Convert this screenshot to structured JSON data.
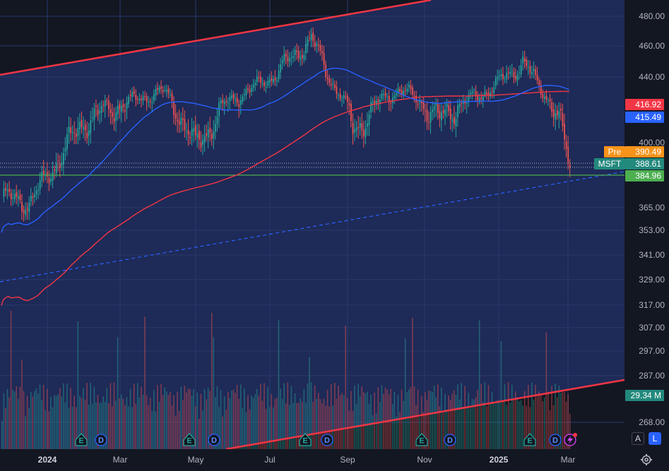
{
  "symbol": "MSFT",
  "colors": {
    "background": "#131722",
    "plot_bg": "#1e2a57",
    "up": "#26a69a",
    "down": "#ef5350",
    "ma50": "#2962ff",
    "ma200": "#f23645",
    "trendline": "#f23645",
    "support": "#4caf50"
  },
  "price_axis": {
    "ticks": [
      "480.00",
      "460.00",
      "440.00",
      "416.92",
      "415.49",
      "400.00",
      "390.49",
      "388.61",
      "384.96",
      "365.00",
      "353.00",
      "341.00",
      "329.00",
      "317.00",
      "307.00",
      "297.00",
      "287.00",
      "268.00"
    ]
  },
  "badges": {
    "ma200_value": "416.92",
    "ma50_value": "415.49",
    "pre_label": "Pre",
    "pre_value": "390.49",
    "symbol_label": "MSFT",
    "last_value": "388.61",
    "support_value": "384.96",
    "volume_value": "29.34 M"
  },
  "time_axis": [
    "2024",
    "Mar",
    "May",
    "Jul",
    "Sep",
    "Nov",
    "2025",
    "Mar"
  ],
  "events": {
    "earnings_letter": "E",
    "dividend_letter": "D"
  },
  "buttons": {
    "auto": "A",
    "log": "L"
  },
  "chart_data": {
    "type": "candlestick",
    "title": "",
    "series": [
      {
        "name": "",
        "type": "candlestick",
        "close": [
          {
            "x": "2023-12",
            "y": 372
          },
          {
            "x": "2024-01",
            "y": 397
          },
          {
            "x": "2024-02",
            "y": 410
          },
          {
            "x": "2024-03",
            "y": 420
          },
          {
            "x": "2024-04",
            "y": 396
          },
          {
            "x": "2024-05",
            "y": 415
          },
          {
            "x": "2024-06",
            "y": 445
          },
          {
            "x": "2024-07",
            "y": 468
          },
          {
            "x": "2024-08",
            "y": 405
          },
          {
            "x": "2024-09",
            "y": 435
          },
          {
            "x": "2024-10",
            "y": 410
          },
          {
            "x": "2024-11",
            "y": 420
          },
          {
            "x": "2024-12",
            "y": 452
          },
          {
            "x": "2025-01",
            "y": 440
          },
          {
            "x": "2025-02",
            "y": 408
          },
          {
            "x": "2025-03",
            "y": 388.61
          }
        ]
      }
    ],
    "price_levels": {
      "ma200": 416.92,
      "ma50": 415.49,
      "premarket": 390.49,
      "last": 388.61,
      "support": 384.96
    },
    "volume_last": "29.34 M",
    "y_range": [
      260,
      485
    ],
    "x_range": [
      "2023-12",
      "2025-03"
    ],
    "y_scale": "log"
  }
}
